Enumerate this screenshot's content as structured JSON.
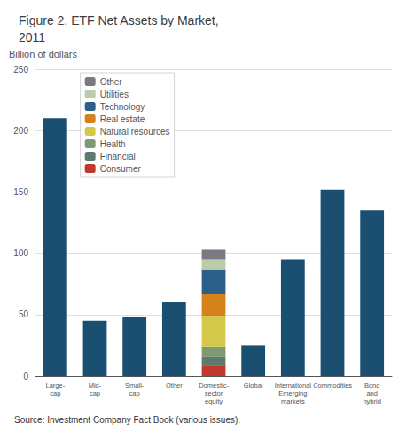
{
  "chart_data": {
    "type": "bar",
    "title": "Figure 2. ETF Net Assets by Market,\n2011",
    "ylabel": "Billion of dollars",
    "annotations": [
      "Source: Investment Company Fact Book (various issues)."
    ],
    "categories": [
      "Large-\ncap",
      "Mid-\ncap",
      "Small-\ncap",
      "Other",
      "Domestic-\nsector\nequity",
      "Global",
      "International\nEmerging\nmarkets",
      "Commodities",
      "Bond\nand\nhybrid"
    ],
    "stacked": true,
    "series": [
      {
        "color": "#1b4f72",
        "values": [
          210,
          45,
          48,
          60,
          null,
          25,
          95,
          152,
          135
        ]
      },
      {
        "name": "Consumer",
        "color": "#c0392b",
        "values": [
          null,
          null,
          null,
          null,
          8,
          null,
          null,
          null,
          null
        ]
      },
      {
        "name": "Financial",
        "color": "#5d7a6e",
        "values": [
          null,
          null,
          null,
          null,
          8,
          null,
          null,
          null,
          null
        ]
      },
      {
        "name": "Health",
        "color": "#7d9a72",
        "values": [
          null,
          null,
          null,
          null,
          8,
          null,
          null,
          null,
          null
        ]
      },
      {
        "name": "Natural resources",
        "color": "#d4c84a",
        "values": [
          null,
          null,
          null,
          null,
          25,
          null,
          null,
          null,
          null
        ]
      },
      {
        "name": "Real estate",
        "color": "#d4821a",
        "values": [
          null,
          null,
          null,
          null,
          18,
          null,
          null,
          null,
          null
        ]
      },
      {
        "name": "Technology",
        "color": "#2c5f8a",
        "values": [
          null,
          null,
          null,
          null,
          20,
          null,
          null,
          null,
          null
        ]
      },
      {
        "name": "Utilities",
        "color": "#bccba8",
        "values": [
          null,
          null,
          null,
          null,
          8,
          null,
          null,
          null,
          null
        ]
      },
      {
        "name": "Other",
        "color": "#7a7a82",
        "values": [
          null,
          null,
          null,
          null,
          8,
          null,
          null,
          null,
          null
        ]
      }
    ],
    "ylim": [
      0,
      250
    ],
    "yticks": [
      0,
      50,
      100,
      150,
      200,
      250
    ],
    "grid": true,
    "legend": "upper left"
  }
}
